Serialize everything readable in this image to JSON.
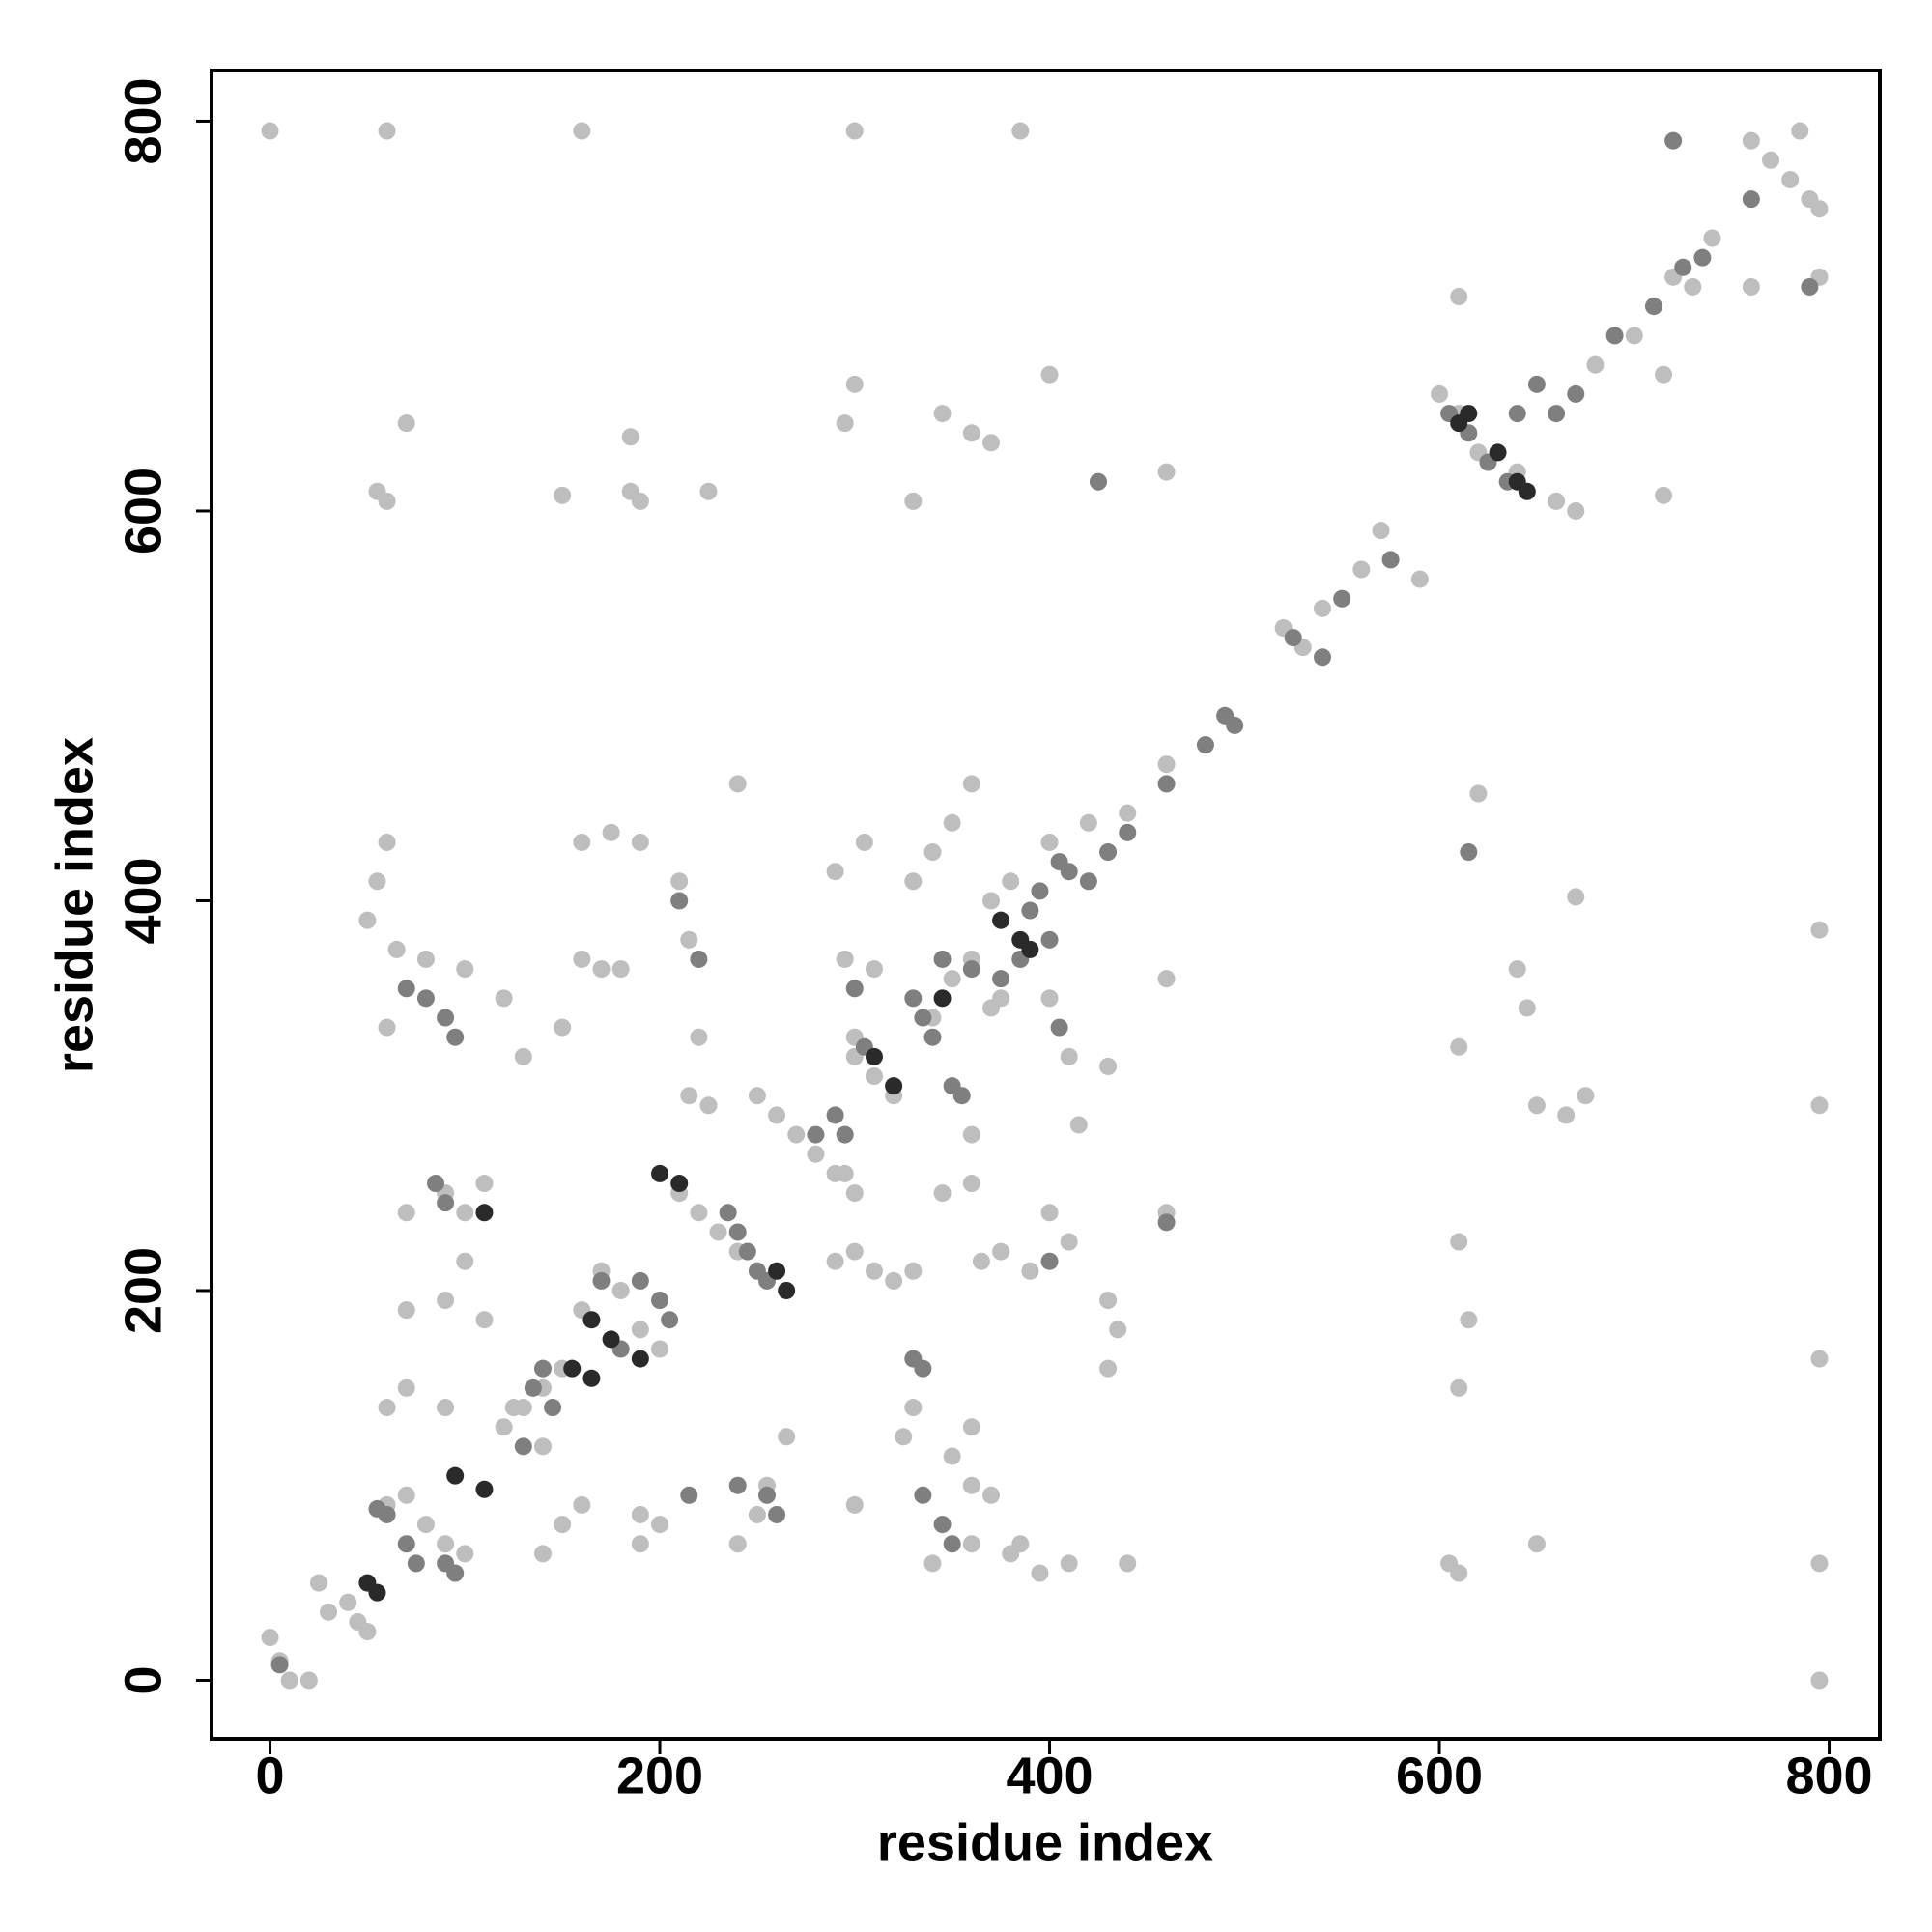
{
  "chart_data": {
    "type": "scatter",
    "xlabel": "residue index",
    "ylabel": "residue index",
    "xlim": [
      -30,
      826
    ],
    "ylim": [
      -30,
      826
    ],
    "xticks": [
      0,
      200,
      400,
      600,
      800
    ],
    "yticks": [
      0,
      200,
      400,
      600,
      800
    ],
    "series": [
      {
        "color": "#bebebe",
        "x": [
          0,
          5,
          10,
          20,
          25,
          30,
          40,
          45,
          50,
          60,
          70,
          80,
          90,
          100,
          120,
          130,
          140,
          150,
          160,
          170,
          180,
          190,
          200,
          210,
          220,
          230,
          240,
          250,
          260,
          270,
          280,
          290,
          300,
          310,
          320,
          340,
          350,
          360,
          370,
          380,
          400,
          420,
          440,
          460,
          520,
          530,
          540,
          560,
          570,
          590,
          600,
          610,
          620,
          640,
          660,
          670,
          680,
          700,
          720,
          740,
          760,
          770,
          780,
          790,
          795,
          785,
          0,
          60,
          160,
          300,
          385,
          55,
          60,
          150,
          185,
          190,
          225,
          330,
          70,
          185,
          295,
          300,
          345,
          360,
          370,
          400,
          425,
          460,
          610,
          715,
          715,
          730,
          760,
          795,
          55,
          60,
          50,
          65,
          80,
          100,
          120,
          130,
          160,
          175,
          190,
          210,
          215,
          220,
          215,
          225,
          240,
          150,
          60,
          60,
          70,
          90,
          90,
          70,
          90,
          100,
          110,
          100,
          110,
          70,
          140,
          150,
          160,
          190,
          190,
          200,
          240,
          250,
          265,
          255,
          300,
          290,
          300,
          310,
          320,
          330,
          345,
          360,
          360,
          365,
          375,
          390,
          400,
          410,
          430,
          430,
          435,
          440,
          410,
          395,
          380,
          360,
          370,
          340,
          360,
          385,
          360,
          350,
          330,
          325,
          300,
          295,
          310,
          340,
          350,
          360,
          305,
          290,
          330,
          370,
          375,
          400,
          410,
          430,
          460,
          415,
          460,
          610,
          610,
          615,
          610,
          605,
          610,
          620,
          640,
          645,
          650,
          665,
          675,
          670,
          795,
          795,
          795,
          795,
          795,
          650,
          300,
          295,
          160,
          170,
          180,
          140,
          125
        ],
        "y": [
          22,
          10,
          0,
          0,
          50,
          35,
          40,
          30,
          25,
          90,
          95,
          80,
          70,
          65,
          130,
          140,
          150,
          160,
          190,
          210,
          200,
          180,
          170,
          250,
          240,
          230,
          220,
          300,
          290,
          280,
          270,
          260,
          320,
          310,
          300,
          340,
          360,
          370,
          400,
          410,
          430,
          440,
          445,
          470,
          540,
          530,
          550,
          570,
          590,
          565,
          660,
          650,
          630,
          620,
          605,
          600,
          675,
          690,
          720,
          740,
          790,
          780,
          770,
          760,
          755,
          795,
          795,
          795,
          795,
          795,
          795,
          610,
          605,
          608,
          610,
          605,
          610,
          605,
          645,
          638,
          645,
          665,
          650,
          640,
          635,
          670,
          615,
          620,
          710,
          608,
          670,
          715,
          715,
          720,
          410,
          430,
          390,
          375,
          370,
          365,
          350,
          320,
          430,
          435,
          430,
          410,
          380,
          330,
          300,
          295,
          460,
          335,
          335,
          140,
          150,
          140,
          195,
          240,
          250,
          240,
          255,
          215,
          185,
          190,
          65,
          80,
          90,
          70,
          85,
          80,
          70,
          85,
          125,
          100,
          90,
          215,
          220,
          210,
          205,
          210,
          250,
          255,
          280,
          215,
          220,
          210,
          240,
          225,
          195,
          160,
          180,
          60,
          60,
          55,
          65,
          100,
          95,
          60,
          70,
          70,
          130,
          115,
          140,
          125,
          330,
          370,
          365,
          425,
          440,
          460,
          430,
          415,
          410,
          345,
          350,
          350,
          320,
          315,
          360,
          285,
          240,
          325,
          225,
          185,
          150,
          60,
          55,
          455,
          365,
          345,
          295,
          290,
          300,
          402,
          385,
          295,
          165,
          60,
          0,
          70,
          250,
          260,
          370,
          365,
          365,
          120,
          140
        ]
      },
      {
        "color": "#7f7f7f",
        "x": [
          5,
          55,
          60,
          70,
          75,
          90,
          95,
          95,
          90,
          70,
          80,
          85,
          90,
          140,
          130,
          135,
          145,
          170,
          180,
          190,
          200,
          205,
          210,
          215,
          220,
          235,
          240,
          245,
          250,
          255,
          240,
          255,
          260,
          280,
          290,
          295,
          300,
          305,
          330,
          335,
          340,
          345,
          350,
          355,
          360,
          375,
          385,
          390,
          395,
          400,
          405,
          410,
          420,
          430,
          440,
          460,
          480,
          490,
          495,
          525,
          540,
          550,
          575,
          605,
          615,
          625,
          635,
          640,
          650,
          660,
          670,
          690,
          710,
          720,
          725,
          735,
          760,
          790,
          330,
          335,
          335,
          345,
          350,
          400,
          405,
          615,
          460,
          425
        ],
        "y": [
          8,
          88,
          85,
          70,
          60,
          60,
          55,
          330,
          340,
          355,
          350,
          255,
          245,
          160,
          120,
          150,
          140,
          205,
          170,
          205,
          195,
          185,
          400,
          95,
          370,
          240,
          230,
          220,
          210,
          205,
          100,
          95,
          85,
          280,
          290,
          280,
          355,
          325,
          350,
          340,
          330,
          370,
          305,
          300,
          365,
          360,
          370,
          395,
          405,
          380,
          420,
          415,
          410,
          425,
          435,
          460,
          480,
          495,
          490,
          535,
          525,
          555,
          575,
          650,
          640,
          625,
          615,
          650,
          665,
          650,
          660,
          690,
          705,
          790,
          725,
          730,
          760,
          715,
          165,
          160,
          95,
          80,
          70,
          215,
          335,
          425,
          235,
          615
        ]
      },
      {
        "color": "#2a2a2a",
        "x": [
          50,
          55,
          95,
          110,
          110,
          155,
          165,
          165,
          175,
          190,
          200,
          210,
          260,
          265,
          310,
          320,
          345,
          375,
          385,
          390,
          610,
          615,
          630,
          640,
          645
        ],
        "y": [
          50,
          45,
          105,
          98,
          240,
          160,
          155,
          185,
          175,
          165,
          260,
          255,
          210,
          200,
          320,
          305,
          350,
          390,
          380,
          375,
          645,
          650,
          630,
          615,
          610
        ]
      }
    ]
  }
}
